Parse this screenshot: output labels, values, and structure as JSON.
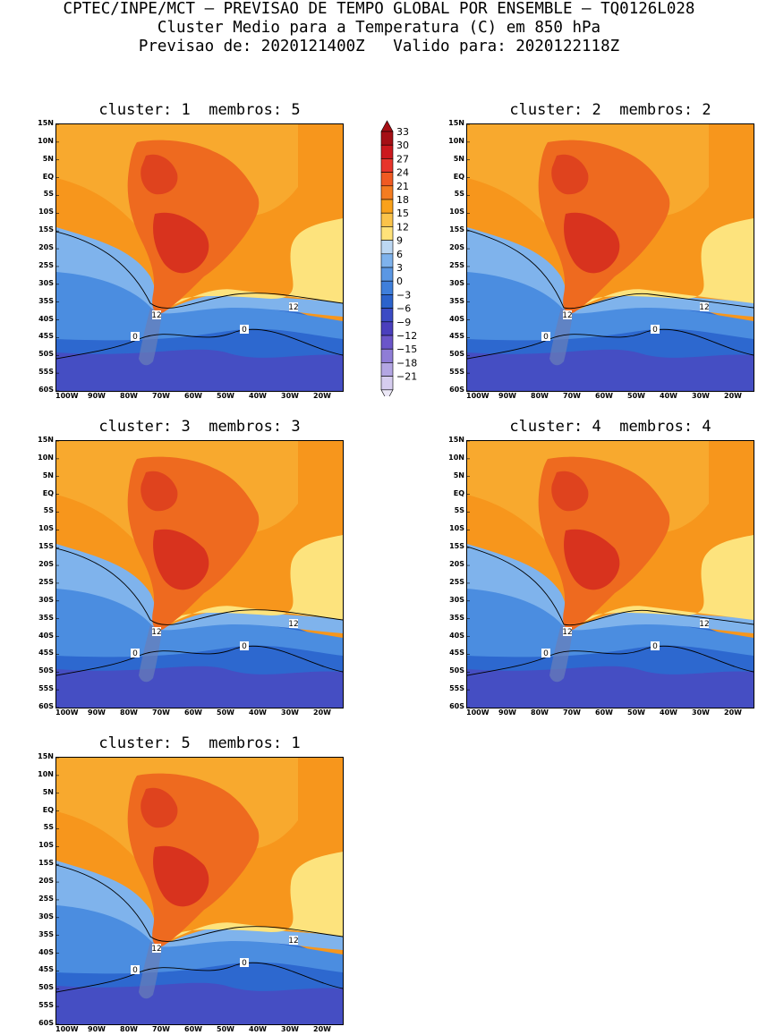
{
  "header": {
    "line1": "CPTEC/INPE/MCT — PREVISAO DE TEMPO GLOBAL POR ENSEMBLE — TQ0126L028",
    "line2": "Cluster Medio para a Temperatura (C) em 850 hPa",
    "line3": "Previsao de: 2020121400Z   Valido para: 2020122118Z"
  },
  "panels": [
    {
      "title": "cluster: 1  membros: 5"
    },
    {
      "title": "cluster: 2  membros: 2"
    },
    {
      "title": "cluster: 3  membros: 3"
    },
    {
      "title": "cluster: 4  membros: 4"
    },
    {
      "title": "cluster: 5  membros: 1"
    }
  ],
  "axes": {
    "lat_labels": [
      "15N",
      "10N",
      "5N",
      "EQ",
      "5S",
      "10S",
      "15S",
      "20S",
      "25S",
      "30S",
      "35S",
      "40S",
      "45S",
      "50S",
      "55S",
      "60S"
    ],
    "lon_labels": [
      "100W",
      "90W",
      "80W",
      "70W",
      "60W",
      "50W",
      "40W",
      "30W",
      "20W"
    ]
  },
  "contour_labels": {
    "warm": "12",
    "cold": "0"
  },
  "colorbar": {
    "levels": [
      "33",
      "30",
      "27",
      "24",
      "21",
      "18",
      "15",
      "12",
      "9",
      "6",
      "3",
      "0",
      "−3",
      "−6",
      "−9",
      "−12",
      "−15",
      "−18",
      "−21"
    ],
    "colors": [
      "#a50f15",
      "#cb181d",
      "#e7352b",
      "#f05a22",
      "#f47c20",
      "#f9a11b",
      "#fbc34a",
      "#ffe27a",
      "#bcd7f2",
      "#7eb2ec",
      "#5b97e3",
      "#3f7fdb",
      "#2c63cc",
      "#3b4bc4",
      "#4a3fbd",
      "#6b55c9",
      "#8f7dd6",
      "#b3a6e3",
      "#d6cdef"
    ]
  },
  "palette": {
    "hot": "#d8331e",
    "warm": "#ee6a1f",
    "orange": "#f7961c",
    "lightorange": "#f9b63b",
    "yellow": "#fde37d",
    "lightblue": "#7fb3ec",
    "blue": "#4b8de0",
    "darkblue": "#2d68cf",
    "indigo": "#3e4ec2",
    "purple": "#6a4fc8"
  }
}
